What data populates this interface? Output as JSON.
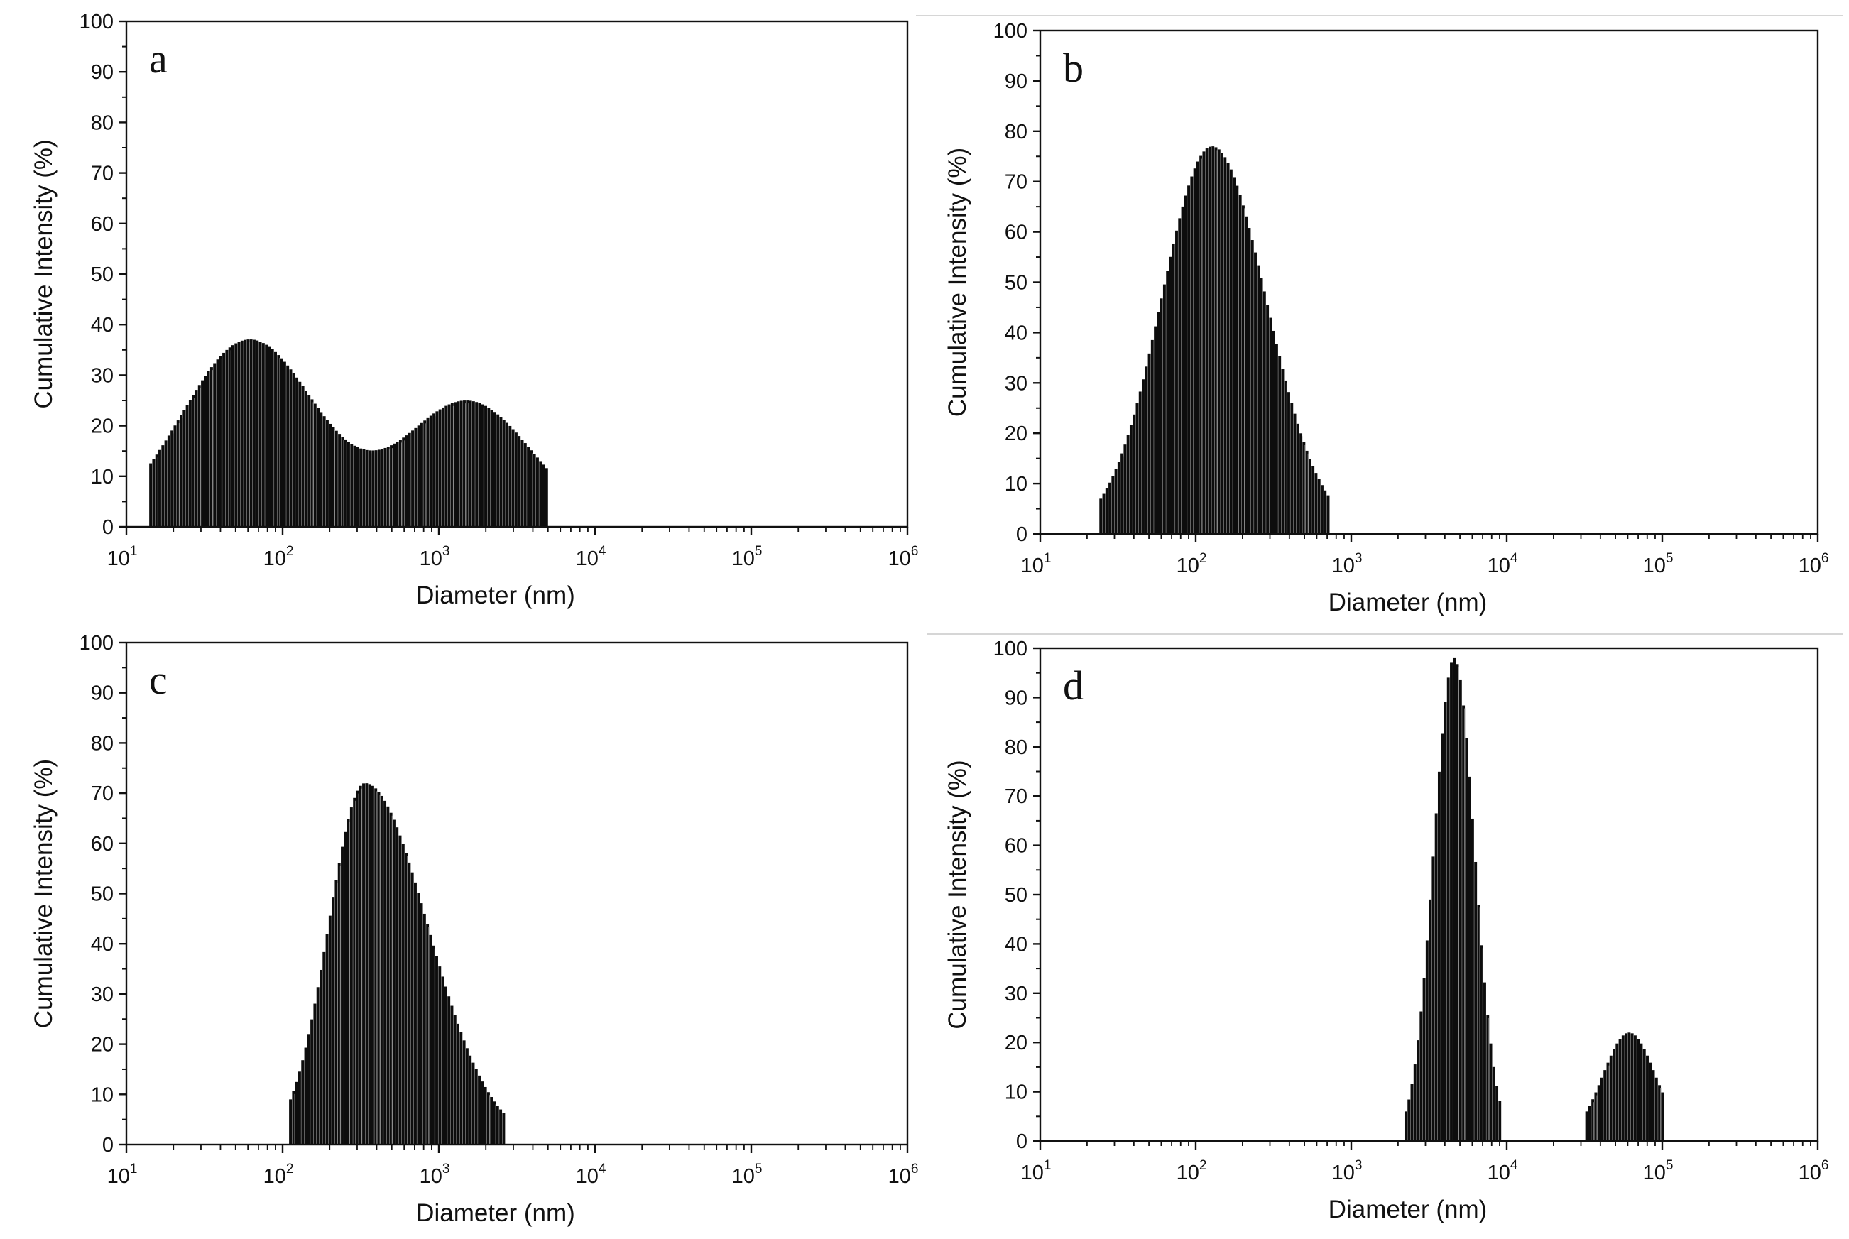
{
  "figure": {
    "x_axis_title": "Diameter (nm)",
    "y_axis_title": "Cumulative Intensity (%)",
    "y_ticks": [
      "0",
      "10",
      "20",
      "30",
      "40",
      "50",
      "60",
      "70",
      "80",
      "90",
      "100"
    ],
    "x_tick_base": "10",
    "x_tick_exponents": [
      "1",
      "2",
      "3",
      "4",
      "5",
      "6"
    ]
  },
  "chart_data": [
    {
      "panel": "a",
      "type": "bar",
      "xscale": "log",
      "xlim": [
        10,
        1000000
      ],
      "ylim": [
        0,
        100
      ],
      "xlabel": "Diameter (nm)",
      "ylabel": "Cumulative Intensity (%)",
      "distribution": "bimodal",
      "x_range": [
        14,
        5000
      ],
      "peaks": [
        {
          "diameter": 60,
          "intensity": 37
        },
        {
          "diameter": 1500,
          "intensity": 26
        }
      ],
      "valley": {
        "diameter": 330,
        "intensity": 15.5
      },
      "edge_values": {
        "start": 7,
        "end": 7
      }
    },
    {
      "panel": "b",
      "type": "bar",
      "xscale": "log",
      "xlim": [
        10,
        1000000
      ],
      "ylim": [
        0,
        100
      ],
      "xlabel": "Diameter (nm)",
      "ylabel": "Cumulative Intensity (%)",
      "distribution": "unimodal",
      "x_range": [
        24,
        720
      ],
      "peaks": [
        {
          "diameter": 125,
          "intensity": 77
        }
      ],
      "edge_values": {
        "start": 7,
        "end": 7
      }
    },
    {
      "panel": "c",
      "type": "bar",
      "xscale": "log",
      "xlim": [
        10,
        1000000
      ],
      "ylim": [
        0,
        100
      ],
      "xlabel": "Diameter (nm)",
      "ylabel": "Cumulative Intensity (%)",
      "distribution": "unimodal",
      "x_range": [
        110,
        2600
      ],
      "peaks": [
        {
          "diameter": 330,
          "intensity": 72
        }
      ],
      "edge_values": {
        "start": 9,
        "end": 6
      }
    },
    {
      "panel": "d",
      "type": "bar",
      "xscale": "log",
      "xlim": [
        10,
        1000000
      ],
      "ylim": [
        0,
        100
      ],
      "xlabel": "Diameter (nm)",
      "ylabel": "Cumulative Intensity (%)",
      "distribution": "bimodal",
      "x_range": [
        2200,
        100000
      ],
      "segments": [
        {
          "x_range": [
            2200,
            9000
          ],
          "peak_diameter": 4500,
          "peak_intensity": 98
        },
        {
          "x_range": [
            32000,
            100000
          ],
          "peak_diameter": 60000,
          "peak_intensity": 22
        }
      ],
      "edge_values": {
        "start": 6,
        "end": 6
      }
    }
  ]
}
